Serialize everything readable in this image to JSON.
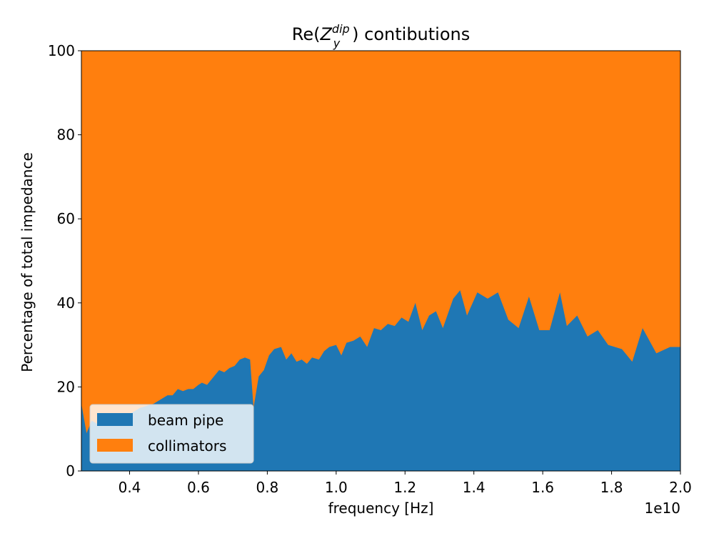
{
  "chart_data": {
    "type": "area",
    "stacked": true,
    "title_main": "Re(",
    "title_symbol": "Z",
    "title_superscript": "dip",
    "title_subscript": "y",
    "title_rest": ") contibutions",
    "xlabel": "frequency [Hz]",
    "ylabel": "Percentage of total impedance",
    "x_offset_label": "1e10",
    "xlim": [
      0.26,
      2.0
    ],
    "ylim": [
      0,
      100
    ],
    "x_ticks": [
      {
        "value": 0.4,
        "label": "0.4"
      },
      {
        "value": 0.6,
        "label": "0.6"
      },
      {
        "value": 0.8,
        "label": "0.8"
      },
      {
        "value": 1.0,
        "label": "1.0"
      },
      {
        "value": 1.2,
        "label": "1.2"
      },
      {
        "value": 1.4,
        "label": "1.4"
      },
      {
        "value": 1.6,
        "label": "1.6"
      },
      {
        "value": 1.8,
        "label": "1.8"
      },
      {
        "value": 2.0,
        "label": "2.0"
      }
    ],
    "y_ticks": [
      {
        "value": 0,
        "label": "0"
      },
      {
        "value": 20,
        "label": "20"
      },
      {
        "value": 40,
        "label": "40"
      },
      {
        "value": 60,
        "label": "60"
      },
      {
        "value": 80,
        "label": "80"
      },
      {
        "value": 100,
        "label": "100"
      }
    ],
    "legend_position": "lower-left",
    "x": [
      0.26,
      0.275,
      0.29,
      0.31,
      0.33,
      0.35,
      0.37,
      0.39,
      0.41,
      0.43,
      0.45,
      0.47,
      0.49,
      0.51,
      0.525,
      0.54,
      0.555,
      0.57,
      0.585,
      0.6,
      0.61,
      0.625,
      0.64,
      0.66,
      0.675,
      0.69,
      0.705,
      0.72,
      0.735,
      0.75,
      0.76,
      0.775,
      0.79,
      0.805,
      0.82,
      0.84,
      0.855,
      0.87,
      0.885,
      0.9,
      0.915,
      0.93,
      0.95,
      0.965,
      0.98,
      1.0,
      1.015,
      1.03,
      1.05,
      1.07,
      1.09,
      1.11,
      1.13,
      1.15,
      1.17,
      1.19,
      1.21,
      1.23,
      1.25,
      1.27,
      1.29,
      1.31,
      1.34,
      1.36,
      1.38,
      1.41,
      1.44,
      1.47,
      1.5,
      1.53,
      1.56,
      1.59,
      1.62,
      1.65,
      1.67,
      1.7,
      1.73,
      1.76,
      1.79,
      1.83,
      1.86,
      1.89,
      1.93,
      1.97,
      2.0
    ],
    "series": [
      {
        "name": "beam pipe",
        "color": "#1f77b4",
        "values": [
          16,
          9,
          12,
          11,
          11,
          12,
          12.5,
          13,
          14,
          15,
          15.5,
          16,
          17,
          18,
          18,
          19.5,
          19,
          19.5,
          19.5,
          20.5,
          21,
          20.5,
          22,
          24,
          23.5,
          24.5,
          25,
          26.5,
          27,
          26.5,
          15,
          22.5,
          24,
          27.5,
          29,
          29.5,
          26.5,
          28,
          26,
          26.5,
          25.5,
          27,
          26.5,
          28.5,
          29.5,
          30,
          27.5,
          30.5,
          31,
          32,
          29.5,
          34,
          33.5,
          35,
          34.5,
          36.5,
          35.5,
          40,
          33.5,
          37,
          38,
          34,
          41,
          43,
          37,
          42.5,
          41,
          42.5,
          36,
          34,
          41.5,
          33.5,
          33.5,
          42.5,
          34.5,
          37,
          32,
          33.5,
          30,
          29,
          26,
          34,
          28,
          29.5,
          29.5
        ]
      },
      {
        "name": "collimators",
        "color": "#ff7f0e"
      }
    ]
  }
}
